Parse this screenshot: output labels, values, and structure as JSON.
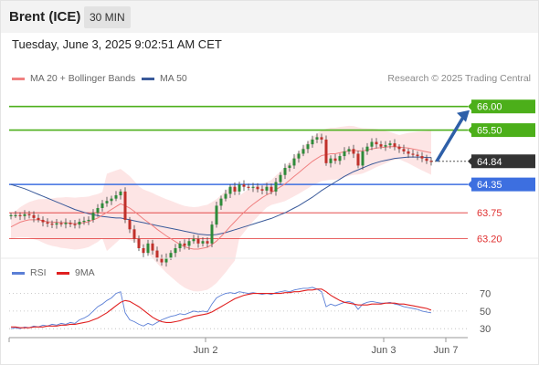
{
  "header": {
    "title": "Brent (ICE)",
    "timeframe": "30 MIN"
  },
  "datetime": "Tuesday, June 3, 2025 9:02:51 AM CET",
  "legend": {
    "items": [
      {
        "label": "MA 20 + Bollinger Bands",
        "color": "#f08080"
      },
      {
        "label": "MA 50",
        "color": "#3a5a9a"
      }
    ],
    "credit": "Research © 2025 Trading Central"
  },
  "rsi_legend": {
    "items": [
      {
        "label": "RSI",
        "color": "#5b7fd6"
      },
      {
        "label": "9MA",
        "color": "#e02020"
      }
    ]
  },
  "colors": {
    "resistance": "#4caf1a",
    "current": "#333333",
    "pivot": "#3d6fe0",
    "support": "#e03030",
    "arrow": "#2e5fa8",
    "up_candle": "#2e8b3a",
    "down_candle": "#c0302a",
    "band_fill": "#fde0e0"
  },
  "chart_data": [
    {
      "type": "candlestick",
      "title": "Brent (ICE)",
      "y_axis_side": "right",
      "ylim": [
        63.0,
        66.4
      ],
      "x_tick_labels": [
        "Jun 2",
        "Jun 3",
        "Jun 7"
      ],
      "price_levels": [
        {
          "label": "66.00",
          "value": 66.0,
          "kind": "resistance"
        },
        {
          "label": "65.50",
          "value": 65.5,
          "kind": "resistance"
        },
        {
          "label": "64.84",
          "value": 64.84,
          "kind": "current"
        },
        {
          "label": "64.35",
          "value": 64.35,
          "kind": "pivot"
        },
        {
          "label": "63.75",
          "value": 63.75,
          "kind": "support"
        },
        {
          "label": "63.20",
          "value": 63.2,
          "kind": "support"
        }
      ],
      "close_series": [
        63.7,
        63.7,
        63.68,
        63.72,
        63.7,
        63.64,
        63.6,
        63.55,
        63.52,
        63.5,
        63.53,
        63.51,
        63.54,
        63.51,
        63.5,
        63.56,
        63.58,
        63.6,
        63.75,
        63.85,
        63.95,
        64.0,
        64.05,
        64.12,
        64.2,
        63.6,
        63.4,
        63.2,
        63.0,
        62.9,
        63.1,
        62.95,
        62.8,
        62.7,
        62.8,
        62.9,
        63.0,
        63.1,
        63.05,
        63.15,
        63.2,
        63.1,
        63.15,
        63.1,
        63.5,
        63.9,
        64.05,
        64.15,
        64.3,
        64.2,
        64.35,
        64.3,
        64.28,
        64.3,
        64.25,
        64.22,
        64.3,
        64.2,
        64.4,
        64.55,
        64.7,
        64.75,
        64.9,
        65.0,
        65.1,
        65.2,
        65.3,
        65.35,
        65.3,
        64.8,
        64.9,
        64.85,
        64.95,
        65.05,
        65.1,
        65.0,
        64.75,
        65.05,
        65.15,
        65.25,
        65.2,
        65.15,
        65.18,
        65.22,
        65.15,
        65.1,
        65.05,
        65.0,
        64.98,
        64.95,
        64.9,
        64.85,
        64.84
      ],
      "ma20_series": [
        63.45,
        63.5,
        63.55,
        63.58,
        63.6,
        63.6,
        63.6,
        63.58,
        63.56,
        63.55,
        63.55,
        63.54,
        63.54,
        63.53,
        63.52,
        63.53,
        63.54,
        63.56,
        63.6,
        63.64,
        63.7,
        63.76,
        63.82,
        63.88,
        63.94,
        63.9,
        63.85,
        63.78,
        63.7,
        63.62,
        63.55,
        63.48,
        63.4,
        63.33,
        63.26,
        63.2,
        63.14,
        63.08,
        63.03,
        63.0,
        62.98,
        62.98,
        63.0,
        63.02,
        63.08,
        63.15,
        63.25,
        63.35,
        63.46,
        63.56,
        63.66,
        63.76,
        63.85,
        63.93,
        64.0,
        64.07,
        64.13,
        64.18,
        64.24,
        64.3,
        64.36,
        64.44,
        64.52,
        64.6,
        64.68,
        64.76,
        64.84,
        64.9,
        64.96,
        64.98,
        65.0,
        65.0,
        65.02,
        65.04,
        65.06,
        65.07,
        65.06,
        65.06,
        65.08,
        65.1,
        65.12,
        65.13,
        65.14,
        65.15,
        65.15,
        65.14,
        65.13,
        65.12,
        65.1,
        65.08,
        65.06,
        65.04,
        65.02
      ],
      "ma50_series": [
        64.35,
        64.32,
        64.29,
        64.26,
        64.22,
        64.18,
        64.14,
        64.1,
        64.06,
        64.02,
        63.98,
        63.94,
        63.9,
        63.86,
        63.82,
        63.79,
        63.76,
        63.73,
        63.71,
        63.69,
        63.67,
        63.66,
        63.65,
        63.64,
        63.64,
        63.62,
        63.6,
        63.58,
        63.56,
        63.54,
        63.52,
        63.5,
        63.48,
        63.46,
        63.44,
        63.42,
        63.4,
        63.38,
        63.36,
        63.34,
        63.32,
        63.3,
        63.29,
        63.28,
        63.28,
        63.29,
        63.31,
        63.33,
        63.36,
        63.39,
        63.42,
        63.45,
        63.48,
        63.51,
        63.54,
        63.57,
        63.6,
        63.63,
        63.67,
        63.71,
        63.75,
        63.8,
        63.85,
        63.9,
        63.96,
        64.02,
        64.08,
        64.15,
        64.22,
        64.28,
        64.34,
        64.4,
        64.46,
        64.52,
        64.57,
        64.62,
        64.66,
        64.7,
        64.74,
        64.78,
        64.81,
        64.84,
        64.86,
        64.88,
        64.9,
        64.91,
        64.92,
        64.93,
        64.93,
        64.93,
        64.93,
        64.92,
        64.92
      ]
    },
    {
      "type": "line",
      "title": "RSI",
      "y_ticks": [
        70,
        50,
        30
      ],
      "ylim": [
        25,
        80
      ],
      "series": [
        {
          "name": "RSI",
          "values": [
            30,
            31,
            30,
            32,
            31,
            33,
            32,
            34,
            33,
            35,
            34,
            36,
            35,
            37,
            36,
            40,
            42,
            45,
            50,
            55,
            58,
            62,
            65,
            70,
            72,
            48,
            40,
            38,
            35,
            33,
            36,
            34,
            37,
            40,
            42,
            44,
            45,
            47,
            46,
            48,
            50,
            49,
            50,
            49,
            58,
            65,
            68,
            70,
            71,
            70,
            72,
            71,
            70,
            71,
            70,
            69,
            70,
            69,
            71,
            72,
            73,
            72,
            74,
            75,
            76,
            76,
            77,
            75,
            72,
            55,
            58,
            56,
            58,
            60,
            61,
            59,
            52,
            58,
            60,
            61,
            60,
            59,
            59,
            60,
            58,
            57,
            55,
            54,
            53,
            52,
            50,
            49,
            48
          ]
        },
        {
          "name": "9MA",
          "values": [
            32,
            32,
            31,
            31,
            31,
            32,
            32,
            32,
            33,
            33,
            33,
            34,
            34,
            35,
            35,
            36,
            37,
            38,
            40,
            42,
            45,
            48,
            52,
            56,
            60,
            62,
            61,
            58,
            55,
            51,
            47,
            43,
            40,
            38,
            37,
            37,
            38,
            39,
            41,
            42,
            44,
            45,
            46,
            47,
            49,
            52,
            55,
            58,
            61,
            64,
            66,
            68,
            69,
            70,
            70,
            70,
            70,
            70,
            70,
            70,
            71,
            71,
            72,
            72,
            73,
            74,
            74,
            75,
            75,
            72,
            68,
            65,
            62,
            60,
            59,
            58,
            57,
            57,
            57,
            58,
            58,
            58,
            59,
            59,
            59,
            58,
            58,
            57,
            56,
            55,
            54,
            53,
            51
          ]
        }
      ]
    }
  ]
}
